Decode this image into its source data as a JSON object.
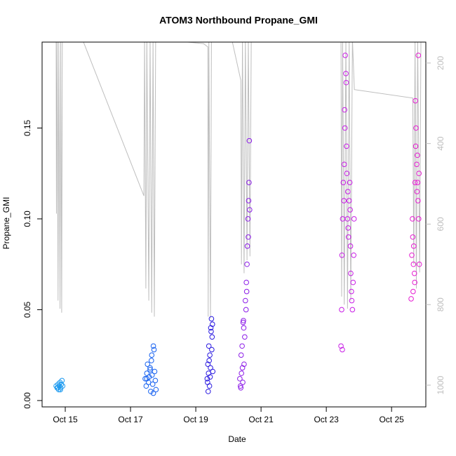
{
  "chart_data": {
    "type": "scatter",
    "title": "ATOM3 Northbound Propane_GMI",
    "x_label": "Date",
    "y_label": "Propane_GMI",
    "xlim": [
      14.29,
      26.05
    ],
    "xticks": [
      {
        "value": 15,
        "label": "Oct 15"
      },
      {
        "value": 17,
        "label": "Oct 17"
      },
      {
        "value": 19,
        "label": "Oct 19"
      },
      {
        "value": 21,
        "label": "Oct 21"
      },
      {
        "value": 23,
        "label": "Oct 23"
      },
      {
        "value": 25,
        "label": "Oct 25"
      }
    ],
    "ylim": [
      -0.0035,
      0.1973
    ],
    "yticks": [
      {
        "value": 0,
        "label": "0.00"
      },
      0.05,
      {
        "value": 0.1,
        "label": "0.10"
      },
      0.15
    ],
    "y2lim": [
      1054,
      148
    ],
    "y2ticks": [
      200,
      400,
      600,
      800,
      1000
    ],
    "series": [
      {
        "color": "#1e9bf0",
        "x": [
          14.72,
          14.75,
          14.78,
          14.8,
          14.82,
          14.84,
          14.86,
          14.88,
          14.9,
          14.92,
          14.77,
          14.85
        ],
        "values": [
          0.008,
          0.007,
          0.009,
          0.006,
          0.008,
          0.01,
          0.007,
          0.009,
          0.011,
          0.008,
          0.007,
          0.006
        ]
      },
      {
        "color": "#1560f0",
        "x": [
          17.45,
          17.48,
          17.5,
          17.52,
          17.55,
          17.57,
          17.6,
          17.62,
          17.64,
          17.66,
          17.68,
          17.7,
          17.72,
          17.74,
          17.76,
          17.78,
          17.6,
          17.65,
          17.7,
          17.5
        ],
        "values": [
          0.012,
          0.008,
          0.015,
          0.02,
          0.01,
          0.013,
          0.018,
          0.005,
          0.022,
          0.014,
          0.009,
          0.03,
          0.028,
          0.016,
          0.011,
          0.006,
          0.017,
          0.025,
          0.004,
          0.012
        ]
      },
      {
        "color": "#2818e0",
        "x": [
          19.35,
          19.37,
          19.39,
          19.4,
          19.42,
          19.43,
          19.45,
          19.46,
          19.48,
          19.5,
          19.38,
          19.41,
          19.44,
          19.47,
          19.49,
          19.52,
          19.36,
          19.51
        ],
        "values": [
          0.012,
          0.02,
          0.015,
          0.03,
          0.008,
          0.025,
          0.018,
          0.04,
          0.045,
          0.035,
          0.005,
          0.022,
          0.013,
          0.038,
          0.028,
          0.016,
          0.01,
          0.042
        ]
      },
      {
        "color": "#8c1ce8",
        "x": [
          20.35,
          20.37,
          20.39,
          20.4,
          20.42,
          20.44,
          20.45,
          20.47,
          20.48,
          20.5,
          20.52,
          20.54,
          20.55,
          20.57,
          20.58,
          20.6,
          20.62,
          20.63,
          20.64,
          20.65,
          20.38,
          20.43,
          20.46,
          20.56,
          20.61
        ],
        "values": [
          0.012,
          0.008,
          0.025,
          0.015,
          0.03,
          0.01,
          0.043,
          0.04,
          0.02,
          0.035,
          0.055,
          0.05,
          0.065,
          0.075,
          0.085,
          0.1,
          0.11,
          0.12,
          0.143,
          0.105,
          0.007,
          0.018,
          0.044,
          0.06,
          0.09
        ]
      },
      {
        "color": "#c81ce6",
        "x": [
          23.45,
          23.47,
          23.48,
          23.5,
          23.52,
          23.54,
          23.55,
          23.57,
          23.58,
          23.6,
          23.62,
          23.63,
          23.65,
          23.67,
          23.68,
          23.7,
          23.72,
          23.74,
          23.75,
          23.77,
          23.78,
          23.8,
          23.82,
          23.84,
          23.85,
          23.49,
          23.56,
          23.61,
          23.66,
          23.73
        ],
        "values": [
          0.03,
          0.05,
          0.08,
          0.1,
          0.12,
          0.11,
          0.13,
          0.15,
          0.19,
          0.18,
          0.14,
          0.125,
          0.1,
          0.095,
          0.09,
          0.11,
          0.12,
          0.085,
          0.07,
          0.06,
          0.055,
          0.05,
          0.065,
          0.08,
          0.1,
          0.028,
          0.16,
          0.175,
          0.115,
          0.105
        ]
      },
      {
        "color": "#e61cd2",
        "x": [
          25.6,
          25.62,
          25.64,
          25.65,
          25.67,
          25.68,
          25.7,
          25.72,
          25.73,
          25.75,
          25.77,
          25.78,
          25.8,
          25.82,
          25.83,
          25.85,
          25.66,
          25.71,
          25.74,
          25.79,
          25.81,
          25.84
        ],
        "values": [
          0.056,
          0.08,
          0.1,
          0.09,
          0.075,
          0.085,
          0.07,
          0.12,
          0.165,
          0.15,
          0.13,
          0.115,
          0.12,
          0.19,
          0.1,
          0.075,
          0.06,
          0.065,
          0.14,
          0.135,
          0.11,
          0.125
        ]
      },
      {
        "type": "line",
        "axis": "y2",
        "color": "#bebebe",
        "x": [
          14.72,
          14.73,
          14.75,
          14.78,
          14.8,
          14.84,
          14.86,
          14.89,
          14.91,
          15.52,
          17.41,
          17.43,
          17.47,
          17.5,
          17.56,
          17.6,
          17.65,
          17.69,
          17.73,
          17.77,
          19.24,
          19.37,
          19.38,
          19.4,
          19.45,
          19.48,
          20.1,
          20.38,
          20.4,
          20.43,
          20.48,
          20.52,
          20.57,
          20.61,
          20.66,
          20.7,
          23.45,
          23.47,
          23.5,
          23.55,
          23.6,
          23.65,
          23.7,
          23.75,
          23.8,
          23.86,
          25.65,
          25.68,
          25.72,
          25.76,
          25.8,
          25.86,
          25.9
        ],
        "values": [
          140,
          574,
          140,
          790,
          140,
          810,
          140,
          820,
          140,
          140,
          530,
          140,
          760,
          140,
          790,
          140,
          820,
          140,
          830,
          140,
          152,
          160,
          830,
          140,
          835,
          140,
          140,
          243,
          700,
          140,
          722,
          140,
          690,
          140,
          680,
          140,
          140,
          780,
          140,
          800,
          140,
          810,
          140,
          790,
          140,
          266,
          287,
          700,
          140,
          760,
          140,
          720,
          140
        ]
      }
    ]
  }
}
